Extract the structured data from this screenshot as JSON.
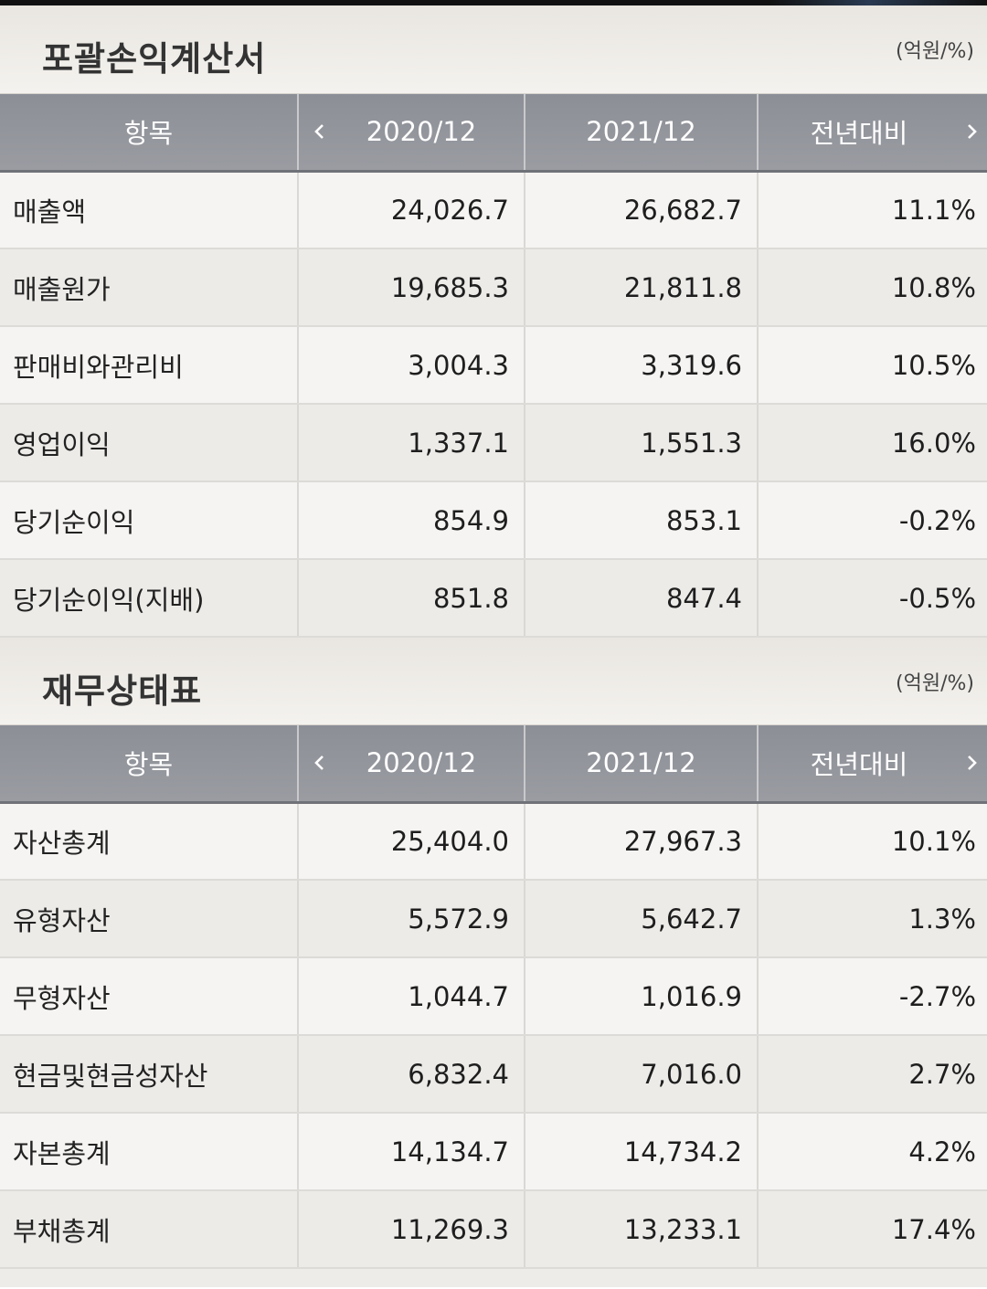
{
  "sections": [
    {
      "title": "포괄손익계산서",
      "unit": "(억원/%)",
      "headers": {
        "item": "항목",
        "col1": "2020/12",
        "col2": "2021/12",
        "col3": "전년대비"
      },
      "rows": [
        {
          "label": "매출액",
          "v1": "24,026.7",
          "v2": "26,682.7",
          "yoy": "11.1%",
          "neg": false
        },
        {
          "label": "매출원가",
          "v1": "19,685.3",
          "v2": "21,811.8",
          "yoy": "10.8%",
          "neg": false
        },
        {
          "label": "판매비와관리비",
          "v1": "3,004.3",
          "v2": "3,319.6",
          "yoy": "10.5%",
          "neg": false
        },
        {
          "label": "영업이익",
          "v1": "1,337.1",
          "v2": "1,551.3",
          "yoy": "16.0%",
          "neg": false
        },
        {
          "label": "당기순이익",
          "v1": "854.9",
          "v2": "853.1",
          "yoy": "-0.2%",
          "neg": true
        },
        {
          "label": "당기순이익(지배)",
          "v1": "851.8",
          "v2": "847.4",
          "yoy": "-0.5%",
          "neg": true
        }
      ]
    },
    {
      "title": "재무상태표",
      "unit": "(억원/%)",
      "headers": {
        "item": "항목",
        "col1": "2020/12",
        "col2": "2021/12",
        "col3": "전년대비"
      },
      "rows": [
        {
          "label": "자산총계",
          "v1": "25,404.0",
          "v2": "27,967.3",
          "yoy": "10.1%",
          "neg": false
        },
        {
          "label": "유형자산",
          "v1": "5,572.9",
          "v2": "5,642.7",
          "yoy": "1.3%",
          "neg": false
        },
        {
          "label": "무형자산",
          "v1": "1,044.7",
          "v2": "1,016.9",
          "yoy": "-2.7%",
          "neg": true
        },
        {
          "label": "현금및현금성자산",
          "v1": "6,832.4",
          "v2": "7,016.0",
          "yoy": "2.7%",
          "neg": false
        },
        {
          "label": "자본총계",
          "v1": "14,134.7",
          "v2": "14,734.2",
          "yoy": "4.2%",
          "neg": false
        },
        {
          "label": "부채총계",
          "v1": "11,269.3",
          "v2": "13,233.1",
          "yoy": "17.4%",
          "neg": false
        }
      ]
    }
  ],
  "icons": {
    "prev": "chevron-left-icon",
    "next": "chevron-right-icon"
  },
  "colors": {
    "negative": "#d63b32",
    "header_bg": "#8c8f96"
  }
}
